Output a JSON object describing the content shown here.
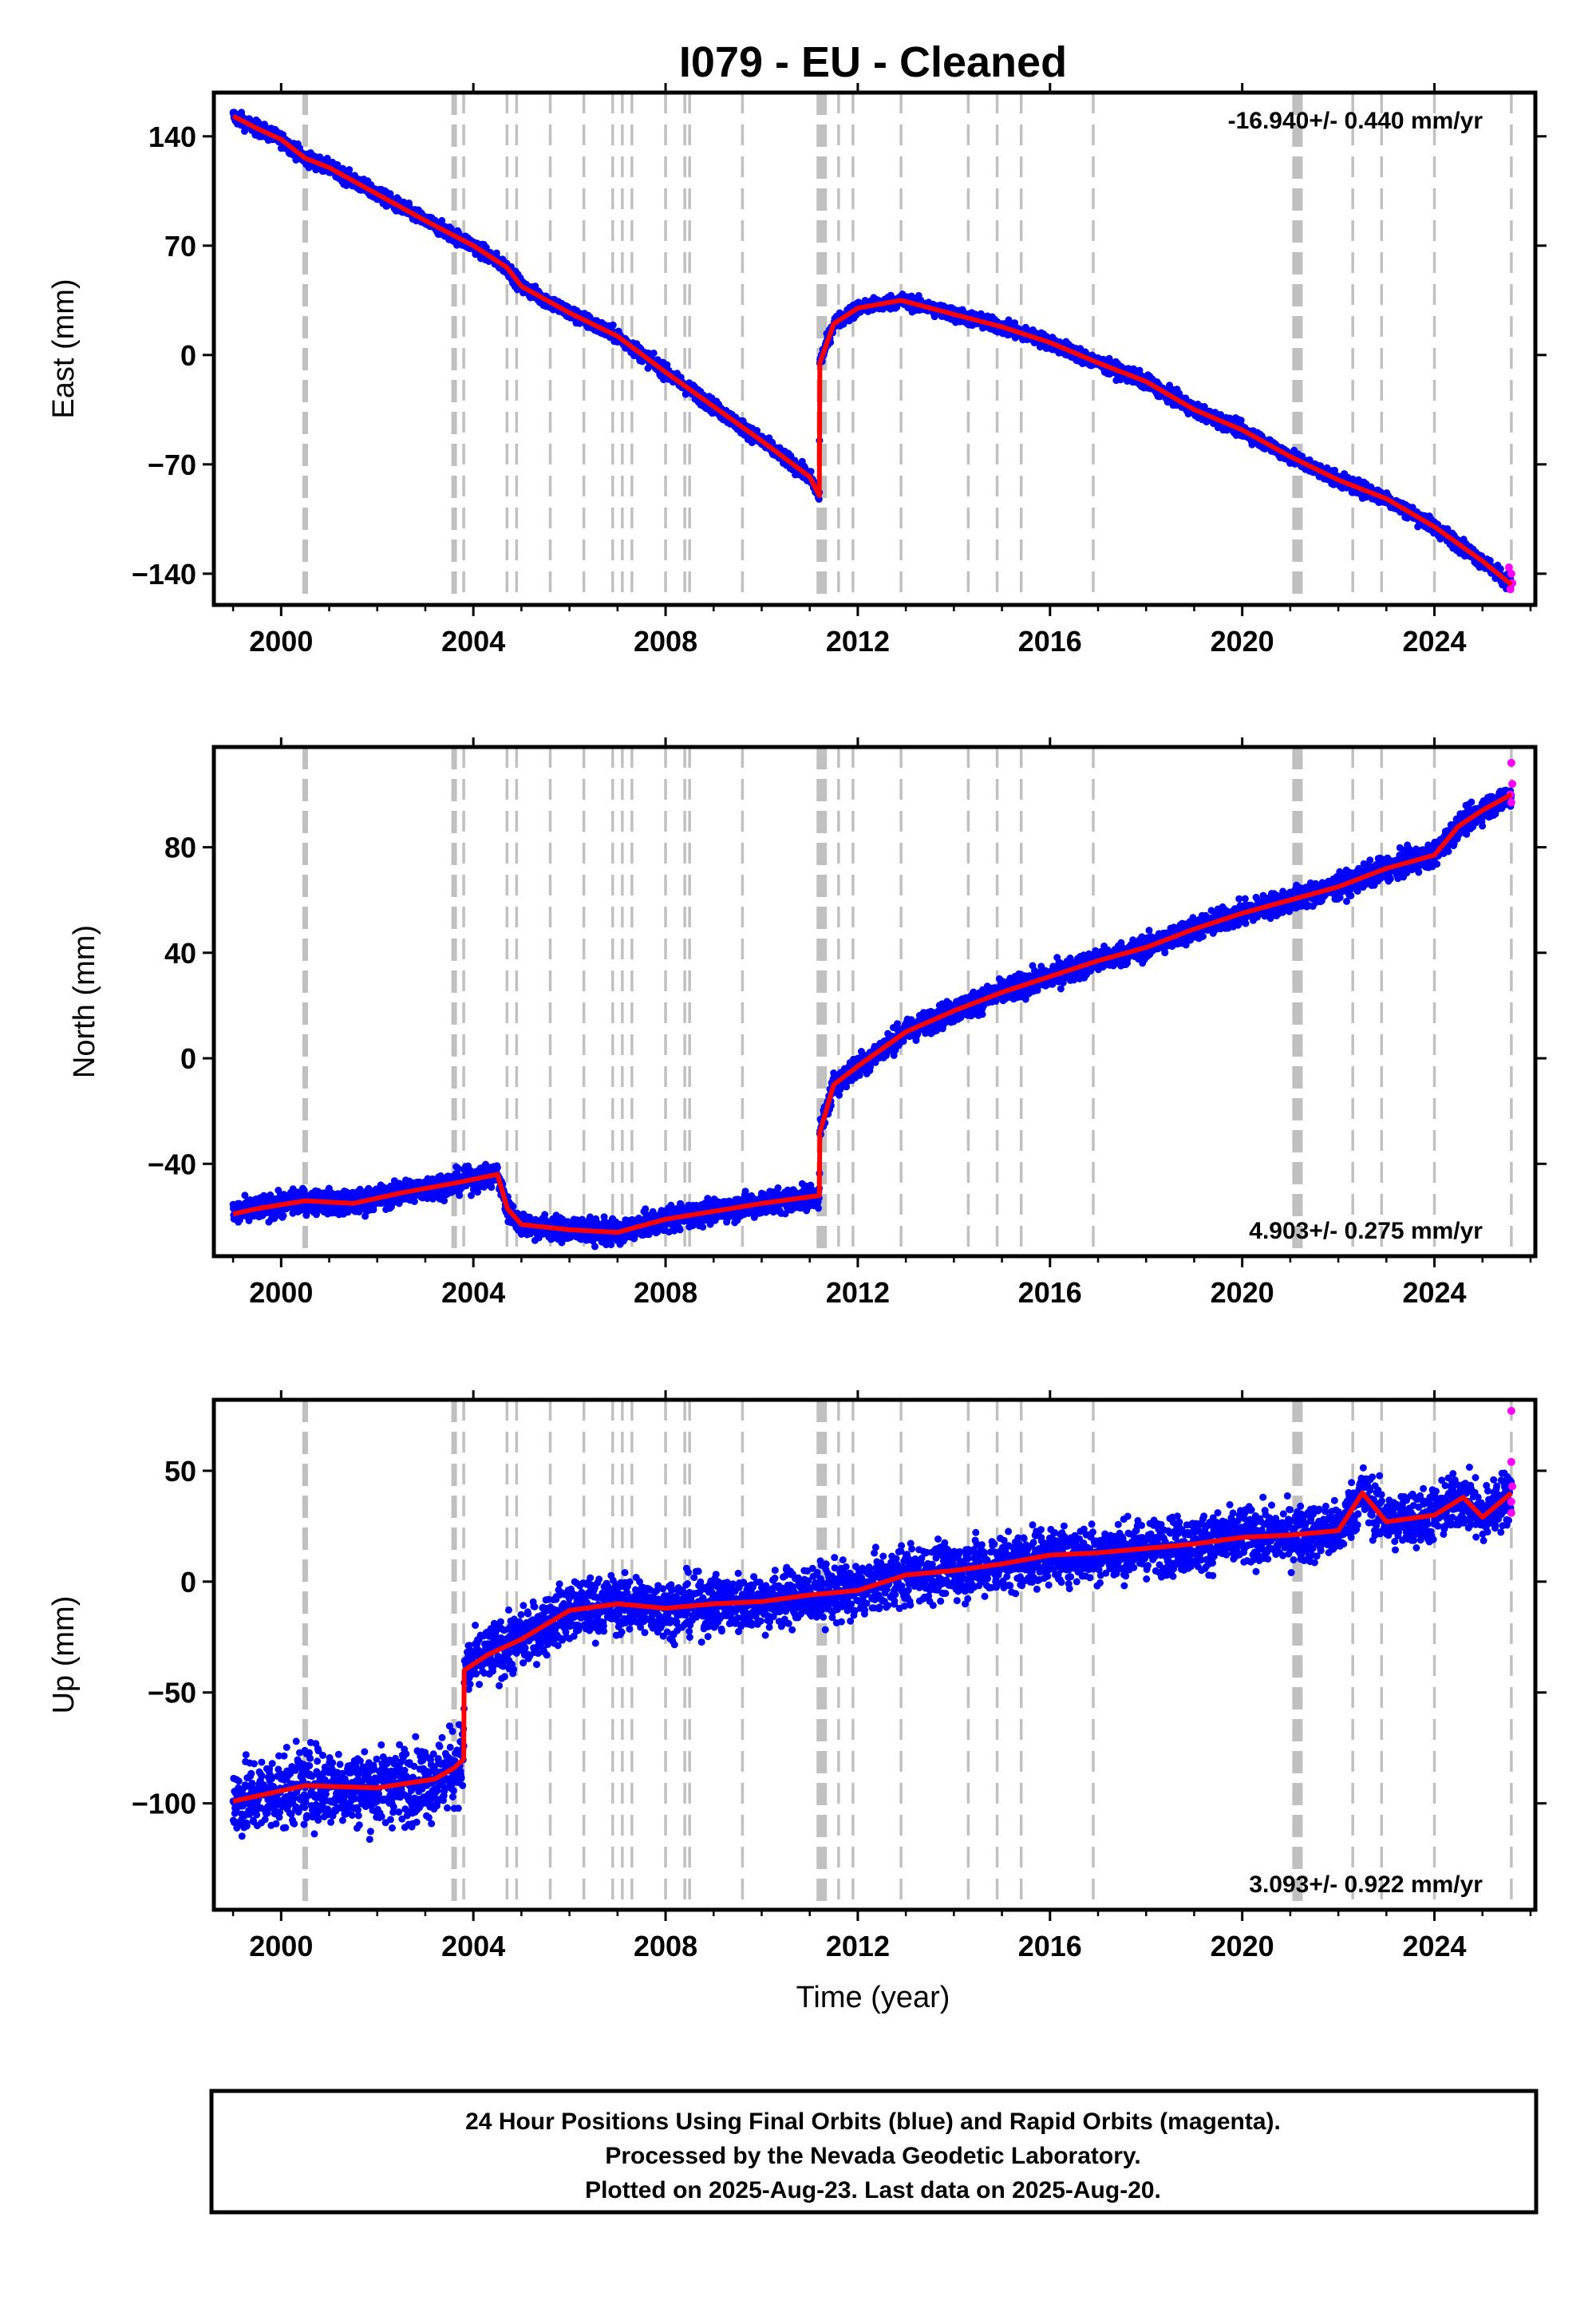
{
  "title": "I079  - EU - Cleaned",
  "footer": {
    "lines": [
      "24 Hour Positions Using Final Orbits (blue) and Rapid Orbits (magenta).",
      "Processed by the Nevada Geodetic Laboratory.",
      "Plotted on 2025-Aug-23. Last data on 2025-Aug-20."
    ]
  },
  "colors": {
    "final_orbits": "#0000ff",
    "rapid_orbits": "#ff00ff",
    "model": "#ff0000",
    "event_lines": "#c0c0c0",
    "frame": "#000000"
  },
  "chart_data": [
    {
      "type": "scatter",
      "component": "East",
      "ylabel": "East (mm)",
      "xlim": [
        1998.6,
        2026.1
      ],
      "ylim": [
        -160,
        168
      ],
      "xticks": [
        2000,
        2004,
        2008,
        2012,
        2016,
        2020,
        2024
      ],
      "xtick_labels": [
        "2000",
        "2004",
        "2008",
        "2012",
        "2016",
        "2020",
        "2024"
      ],
      "yticks": [
        -140,
        -70,
        0,
        70,
        140
      ],
      "ytick_labels": [
        "−140",
        "−70",
        "0",
        "70",
        "140"
      ],
      "rate_text": "-16.940+/- 0.440 mm/yr",
      "rate_position": "top-right",
      "model_points": [
        [
          1999.0,
          153
        ],
        [
          1999.5,
          145
        ],
        [
          2000.0,
          138
        ],
        [
          2000.5,
          126
        ],
        [
          2001.0,
          120
        ],
        [
          2002.0,
          103
        ],
        [
          2003.0,
          86
        ],
        [
          2004.0,
          70
        ],
        [
          2004.7,
          56
        ],
        [
          2005.0,
          44
        ],
        [
          2006.0,
          27
        ],
        [
          2007.0,
          12
        ],
        [
          2008.0,
          -11
        ],
        [
          2009.0,
          -33
        ],
        [
          2010.0,
          -55
        ],
        [
          2011.0,
          -78
        ],
        [
          2011.2,
          -90
        ],
        [
          2011.21,
          -5
        ],
        [
          2011.5,
          20
        ],
        [
          2012.0,
          30
        ],
        [
          2012.9,
          35
        ],
        [
          2014.0,
          26
        ],
        [
          2015.0,
          18
        ],
        [
          2016.0,
          8
        ],
        [
          2017.0,
          -5
        ],
        [
          2018.0,
          -17
        ],
        [
          2019.0,
          -35
        ],
        [
          2020.0,
          -48
        ],
        [
          2021.0,
          -65
        ],
        [
          2022.0,
          -80
        ],
        [
          2023.0,
          -92
        ],
        [
          2024.0,
          -110
        ],
        [
          2025.0,
          -132
        ],
        [
          2025.6,
          -147
        ]
      ],
      "rapid_points": [
        [
          2025.55,
          -136
        ],
        [
          2025.6,
          -140
        ],
        [
          2025.62,
          -146
        ],
        [
          2025.58,
          -150
        ]
      ]
    },
    {
      "type": "scatter",
      "component": "North",
      "ylabel": "North (mm)",
      "xlim": [
        1998.6,
        2026.1
      ],
      "ylim": [
        -75,
        118
      ],
      "xticks": [
        2000,
        2004,
        2008,
        2012,
        2016,
        2020,
        2024
      ],
      "xtick_labels": [
        "2000",
        "2004",
        "2008",
        "2012",
        "2016",
        "2020",
        "2024"
      ],
      "yticks": [
        -40,
        0,
        40,
        80
      ],
      "ytick_labels": [
        "−40",
        "0",
        "40",
        "80"
      ],
      "rate_text": "4.903+/- 0.275 mm/yr",
      "rate_position": "bottom-right",
      "model_points": [
        [
          1999.0,
          -59
        ],
        [
          1999.5,
          -57
        ],
        [
          2000.5,
          -54
        ],
        [
          2001.5,
          -55
        ],
        [
          2002.5,
          -51
        ],
        [
          2003.7,
          -47
        ],
        [
          2004.5,
          -44
        ],
        [
          2004.71,
          -57
        ],
        [
          2005.0,
          -63
        ],
        [
          2006.0,
          -65
        ],
        [
          2007.0,
          -66
        ],
        [
          2008.0,
          -61
        ],
        [
          2009.0,
          -58
        ],
        [
          2010.0,
          -55
        ],
        [
          2011.2,
          -52
        ],
        [
          2011.21,
          -28
        ],
        [
          2011.5,
          -10
        ],
        [
          2012.0,
          -3
        ],
        [
          2013.0,
          10
        ],
        [
          2014.0,
          18
        ],
        [
          2015.0,
          25
        ],
        [
          2016.0,
          31
        ],
        [
          2017.0,
          37
        ],
        [
          2018.0,
          42
        ],
        [
          2019.0,
          49
        ],
        [
          2020.0,
          55
        ],
        [
          2021.0,
          60
        ],
        [
          2022.0,
          65
        ],
        [
          2023.0,
          72
        ],
        [
          2024.0,
          77
        ],
        [
          2024.5,
          88
        ],
        [
          2025.0,
          94
        ],
        [
          2025.6,
          100
        ]
      ],
      "rapid_points": [
        [
          2025.6,
          112
        ],
        [
          2025.62,
          104
        ],
        [
          2025.58,
          100
        ],
        [
          2025.6,
          97
        ]
      ]
    },
    {
      "type": "scatter",
      "component": "Up",
      "ylabel": "Up (mm)",
      "xlim": [
        1998.6,
        2026.1
      ],
      "ylim": [
        -148,
        82
      ],
      "xticks": [
        2000,
        2004,
        2008,
        2012,
        2016,
        2020,
        2024
      ],
      "xtick_labels": [
        "2000",
        "2004",
        "2008",
        "2012",
        "2016",
        "2020",
        "2024"
      ],
      "yticks": [
        -100,
        -50,
        0,
        50
      ],
      "ytick_labels": [
        "−100",
        "−50",
        "0",
        "50"
      ],
      "rate_text": "3.093+/- 0.922 mm/yr",
      "rate_position": "bottom-right",
      "model_points": [
        [
          1999.0,
          -99
        ],
        [
          2000.5,
          -92
        ],
        [
          2002.0,
          -93
        ],
        [
          2003.2,
          -89
        ],
        [
          2003.6,
          -84
        ],
        [
          2003.8,
          -80
        ],
        [
          2003.81,
          -40
        ],
        [
          2004.3,
          -33
        ],
        [
          2005.0,
          -26
        ],
        [
          2006.0,
          -13
        ],
        [
          2007.0,
          -10
        ],
        [
          2008.0,
          -12
        ],
        [
          2009.0,
          -10
        ],
        [
          2010.0,
          -9
        ],
        [
          2011.0,
          -6
        ],
        [
          2012.0,
          -4
        ],
        [
          2013.0,
          3
        ],
        [
          2014.0,
          5
        ],
        [
          2015.0,
          8
        ],
        [
          2016.0,
          12
        ],
        [
          2017.0,
          13
        ],
        [
          2018.0,
          15
        ],
        [
          2019.0,
          17
        ],
        [
          2020.0,
          20
        ],
        [
          2021.0,
          21
        ],
        [
          2022.0,
          23
        ],
        [
          2022.5,
          40
        ],
        [
          2023.0,
          27
        ],
        [
          2024.0,
          30
        ],
        [
          2024.6,
          38
        ],
        [
          2025.0,
          29
        ],
        [
          2025.6,
          40
        ]
      ],
      "rapid_points": [
        [
          2025.6,
          77
        ],
        [
          2025.6,
          54
        ],
        [
          2025.62,
          43
        ],
        [
          2025.6,
          36
        ],
        [
          2025.6,
          31
        ]
      ]
    }
  ],
  "event_lines": {
    "dashed_years": [
      2003.8,
      2004.7,
      2004.9,
      2005.6,
      2006.3,
      2006.9,
      2007.1,
      2007.3,
      2008.0,
      2008.4,
      2008.5,
      2009.6,
      2011.6,
      2011.9,
      2012.9,
      2014.3,
      2014.9,
      2015.4,
      2016.9,
      2022.3,
      2022.9,
      2024.0,
      2025.6
    ],
    "thick_years": [
      2000.5,
      2003.6,
      2011.2,
      2011.3,
      2021.1,
      2021.2
    ]
  },
  "xlabel": "Time (year)"
}
